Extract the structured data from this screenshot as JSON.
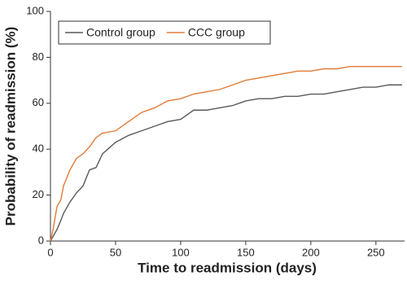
{
  "chart_data": {
    "type": "line",
    "x_label": "Time to readmission (days)",
    "y_label": "Probability of readmission (%)",
    "x": [
      0,
      2,
      5,
      8,
      10,
      15,
      20,
      25,
      30,
      35,
      40,
      50,
      60,
      70,
      80,
      90,
      100,
      110,
      120,
      130,
      140,
      150,
      160,
      170,
      180,
      190,
      200,
      210,
      220,
      230,
      240,
      250,
      260,
      270
    ],
    "series": [
      {
        "name": "Control group",
        "color": "#5a5a5a",
        "values": [
          0,
          2,
          5,
          9,
          12,
          17,
          21,
          24,
          31,
          32,
          38,
          43,
          46,
          48,
          50,
          52,
          53,
          57,
          57,
          58,
          59,
          61,
          62,
          62,
          63,
          63,
          64,
          64,
          65,
          66,
          67,
          67,
          68,
          68
        ]
      },
      {
        "name": "CCC group",
        "color": "#e07b39",
        "values": [
          0,
          5,
          15,
          18,
          24,
          31,
          36,
          38,
          41,
          45,
          47,
          48,
          52,
          56,
          58,
          61,
          62,
          64,
          65,
          66,
          68,
          70,
          71,
          72,
          73,
          74,
          74,
          75,
          75,
          76,
          76,
          76,
          76,
          76
        ]
      }
    ],
    "xlim": [
      0,
      272
    ],
    "xticks": [
      0,
      50,
      100,
      150,
      200,
      250
    ],
    "ylim": [
      0,
      100
    ],
    "yticks": [
      0,
      20,
      40,
      60,
      80,
      100
    ],
    "legend": "upper left"
  }
}
